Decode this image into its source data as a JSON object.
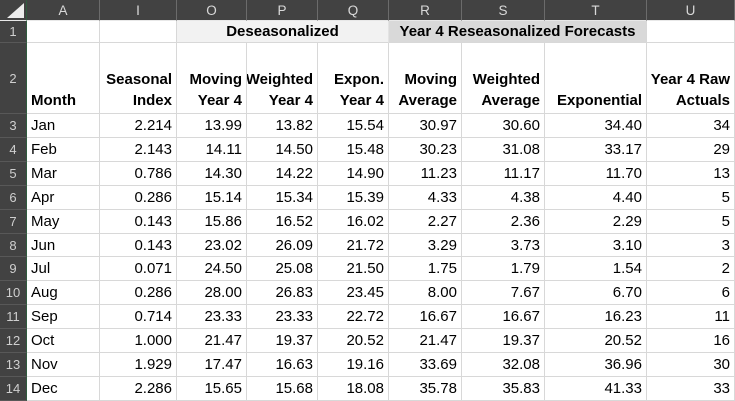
{
  "sheet": {
    "columns": [
      "A",
      "I",
      "O",
      "P",
      "Q",
      "R",
      "S",
      "T",
      "U"
    ],
    "row1": {
      "number": "1",
      "deseasonalized_label": "Deseasonalized",
      "reseasonalized_label": "Year 4 Reseasonalized Forecasts"
    },
    "row2": {
      "number": "2",
      "headers": [
        "Month",
        "Seasonal\nIndex",
        "Moving\nYear 4",
        "Weighted\nYear 4",
        "Expon.\nYear 4",
        "Moving\nAverage",
        "Weighted\nAverage",
        "Exponential",
        "Year 4 Raw\nActuals"
      ]
    },
    "rows": [
      {
        "n": "3",
        "month": "Jan",
        "values": [
          "2.214",
          "13.99",
          "13.82",
          "15.54",
          "30.97",
          "30.60",
          "34.40",
          "34"
        ]
      },
      {
        "n": "4",
        "month": "Feb",
        "values": [
          "2.143",
          "14.11",
          "14.50",
          "15.48",
          "30.23",
          "31.08",
          "33.17",
          "29"
        ]
      },
      {
        "n": "5",
        "month": "Mar",
        "values": [
          "0.786",
          "14.30",
          "14.22",
          "14.90",
          "11.23",
          "11.17",
          "11.70",
          "13"
        ]
      },
      {
        "n": "6",
        "month": "Apr",
        "values": [
          "0.286",
          "15.14",
          "15.34",
          "15.39",
          "4.33",
          "4.38",
          "4.40",
          "5"
        ]
      },
      {
        "n": "7",
        "month": "May",
        "values": [
          "0.143",
          "15.86",
          "16.52",
          "16.02",
          "2.27",
          "2.36",
          "2.29",
          "5"
        ]
      },
      {
        "n": "8",
        "month": "Jun",
        "values": [
          "0.143",
          "23.02",
          "26.09",
          "21.72",
          "3.29",
          "3.73",
          "3.10",
          "3"
        ]
      },
      {
        "n": "9",
        "month": "Jul",
        "values": [
          "0.071",
          "24.50",
          "25.08",
          "21.50",
          "1.75",
          "1.79",
          "1.54",
          "2"
        ]
      },
      {
        "n": "10",
        "month": "Aug",
        "values": [
          "0.286",
          "28.00",
          "26.83",
          "23.45",
          "8.00",
          "7.67",
          "6.70",
          "6"
        ]
      },
      {
        "n": "11",
        "month": "Sep",
        "values": [
          "0.714",
          "23.33",
          "23.33",
          "22.72",
          "16.67",
          "16.67",
          "16.23",
          "11"
        ]
      },
      {
        "n": "12",
        "month": "Oct",
        "values": [
          "1.000",
          "21.47",
          "19.37",
          "20.52",
          "21.47",
          "19.37",
          "20.52",
          "16"
        ]
      },
      {
        "n": "13",
        "month": "Nov",
        "values": [
          "1.929",
          "17.47",
          "16.63",
          "19.16",
          "33.69",
          "32.08",
          "36.96",
          "30"
        ]
      },
      {
        "n": "14",
        "month": "Dec",
        "values": [
          "2.286",
          "15.65",
          "15.68",
          "18.08",
          "35.78",
          "35.83",
          "41.33",
          "33"
        ]
      }
    ]
  },
  "colors": {
    "header_bg": "#424242",
    "header_text": "#d9d9d9",
    "band_light_bg": "#f2f2f2",
    "band_dark_bg": "#d9d9d9",
    "gridline": "#d8d8d8",
    "header_accent_green": "#2f5b3e",
    "cell_text": "#000000"
  }
}
